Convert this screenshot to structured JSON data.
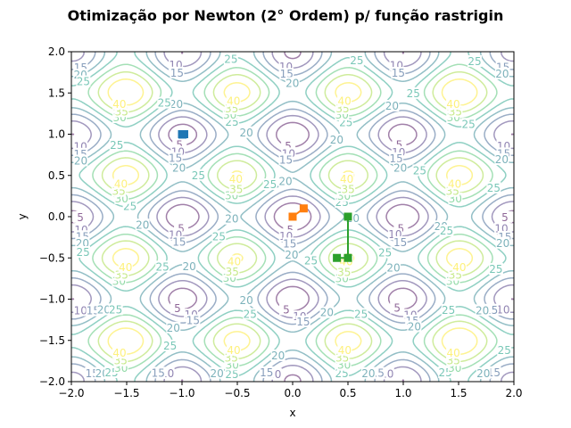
{
  "chart_data": {
    "type": "contour",
    "title": "Otimização por Newton (2° Ordem) p/ função rastrigin",
    "xlabel": "x",
    "ylabel": "y",
    "xlim": [
      -2.0,
      2.0
    ],
    "ylim": [
      -2.0,
      2.0
    ],
    "xticks": [
      "−2.0",
      "−1.5",
      "−1.0",
      "−0.5",
      "0.0",
      "0.5",
      "1.0",
      "1.5",
      "2.0"
    ],
    "yticks": [
      "−2.0",
      "−1.5",
      "−1.0",
      "−0.5",
      "0.0",
      "0.5",
      "1.0",
      "1.5",
      "2.0"
    ],
    "xtick_values": [
      -2.0,
      -1.5,
      -1.0,
      -0.5,
      0.0,
      0.5,
      1.0,
      1.5,
      2.0
    ],
    "ytick_values": [
      -2.0,
      -1.5,
      -1.0,
      -0.5,
      0.0,
      0.5,
      1.0,
      1.5,
      2.0
    ],
    "grid": false,
    "function": "rastrigin",
    "contour_levels": [
      5,
      10,
      15,
      20,
      25,
      30,
      35,
      40
    ],
    "contour_colors": [
      "#440154",
      "#46327e",
      "#365c8d",
      "#277f8e",
      "#1fa187",
      "#4ac16d",
      "#a0da39",
      "#fde725"
    ],
    "contour_alpha": 0.5,
    "series": [
      {
        "color": "#1f77b4",
        "points": [
          [
            -1.0,
            1.0
          ],
          [
            -0.98,
            1.0
          ],
          [
            -0.995,
            0.995
          ]
        ]
      },
      {
        "color": "#ff7f0e",
        "points": [
          [
            0.1,
            0.1
          ],
          [
            0.0,
            0.0
          ],
          [
            0.0,
            0.0
          ]
        ]
      },
      {
        "color": "#2ca02c",
        "points": [
          [
            0.4,
            -0.5
          ],
          [
            0.5,
            -0.5
          ],
          [
            0.5,
            0.0
          ],
          [
            0.5,
            0.0
          ]
        ]
      }
    ]
  }
}
